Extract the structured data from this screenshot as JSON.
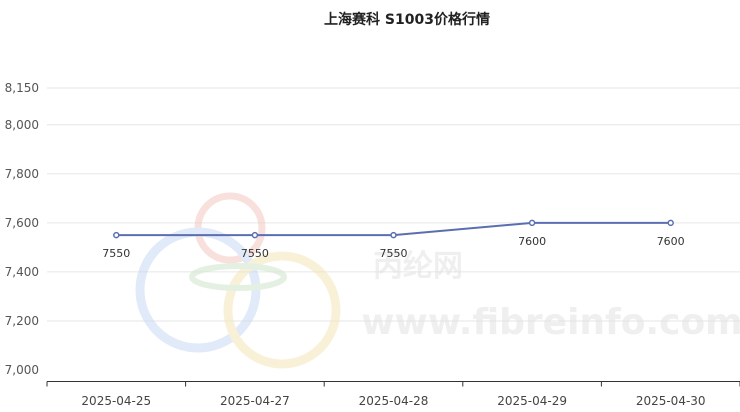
{
  "chart_data": {
    "type": "line",
    "title": "上海赛科 S1003价格行情",
    "categories": [
      "2025-04-25",
      "2025-04-27",
      "2025-04-28",
      "2025-04-29",
      "2025-04-30"
    ],
    "series": [
      {
        "values": [
          7550,
          7550,
          7550,
          7600,
          7600
        ],
        "color": "#5b6fb0"
      }
    ],
    "data_labels": [
      "7550",
      "7550",
      "7550",
      "7600",
      "7600"
    ],
    "ylim": [
      7000,
      8150
    ],
    "yticks": [
      7000,
      7200,
      7400,
      7600,
      7800,
      8000,
      8150
    ],
    "ytick_labels": [
      "7,000",
      "7,200",
      "7,400",
      "7,600",
      "7,800",
      "8,000",
      "8,150"
    ],
    "grid": true,
    "legend": "none"
  },
  "watermark": {
    "site_name": "丙纶网",
    "url": "www.fibreinfo.com"
  }
}
